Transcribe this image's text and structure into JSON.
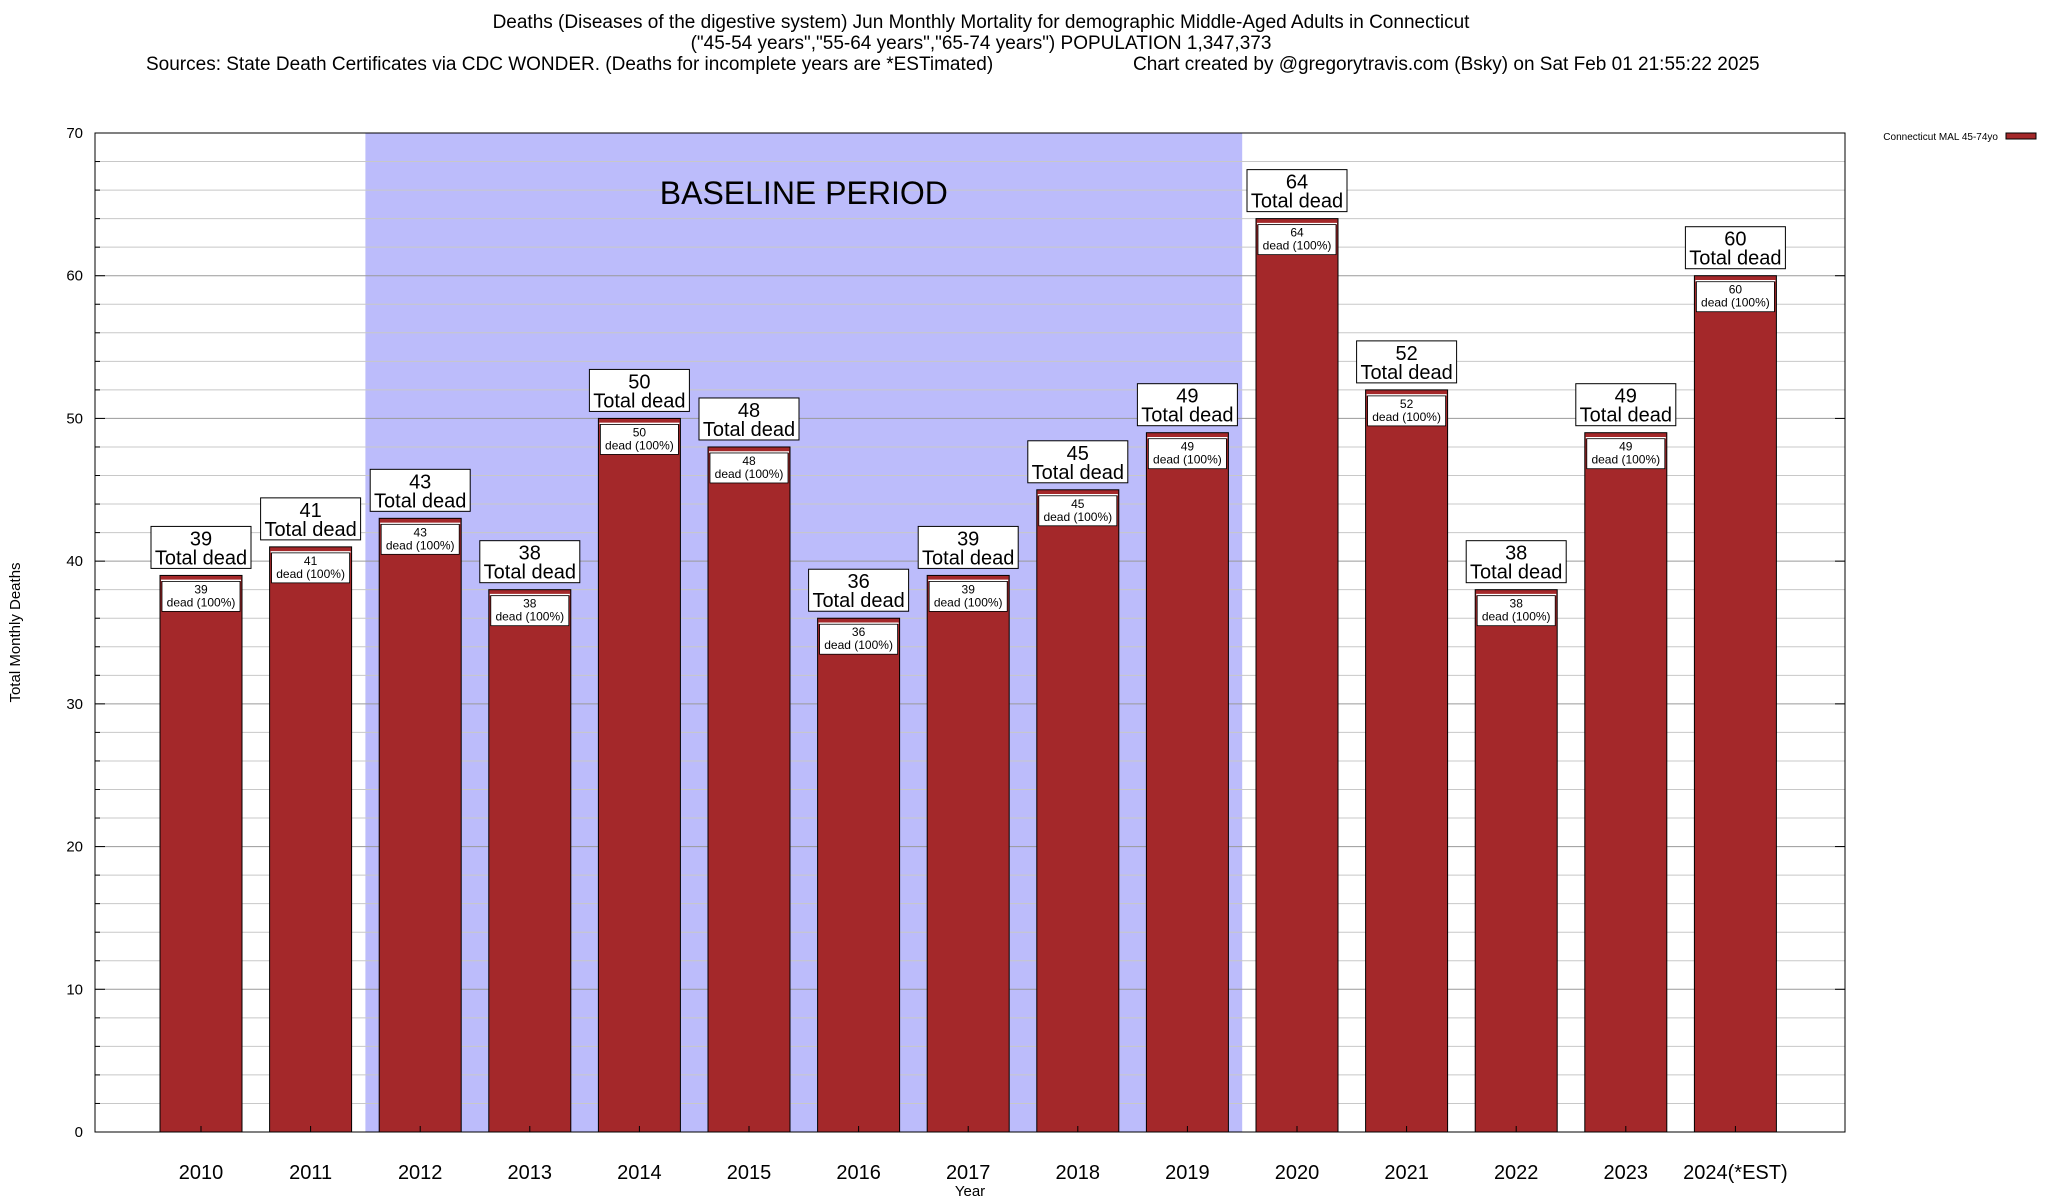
{
  "title": {
    "line1": "Deaths (Diseases of the digestive system) Jun Monthly Mortality for demographic Middle-Aged Adults in Connecticut",
    "line2": "(\"45-54 years\",\"55-64 years\",\"65-74 years\") POPULATION 1,347,373",
    "sources_left": "Sources: State Death Certificates via CDC WONDER. (Deaths for incomplete years are *ESTimated)",
    "sources_right": "Chart created by @gregorytravis.com (Bsky) on Sat Feb 01 21:55:22 2025"
  },
  "colors": {
    "bar": "#a4282a",
    "baseline": "#bcbcfb",
    "grid": "#c8c8c8"
  },
  "chart_data": {
    "type": "bar",
    "categories": [
      "2010",
      "2011",
      "2012",
      "2013",
      "2014",
      "2015",
      "2016",
      "2017",
      "2018",
      "2019",
      "2020",
      "2021",
      "2022",
      "2023",
      "2024(*EST)"
    ],
    "series": [
      {
        "name": "Connecticut MAL 45-74yo",
        "values": [
          39,
          41,
          43,
          38,
          50,
          48,
          36,
          39,
          45,
          49,
          64,
          52,
          38,
          49,
          60
        ]
      }
    ],
    "xlabel": "Year",
    "ylabel": "Total Monthly Deaths",
    "ylim": [
      0,
      70
    ],
    "yticks": [
      0,
      10,
      20,
      30,
      40,
      50,
      60,
      70
    ],
    "grid": true,
    "legend_position": "top-right",
    "top_label_suffix": "Total dead",
    "inner_label_suffix": "dead (100%)",
    "shaded_region": {
      "label": "BASELINE PERIOD",
      "from": "2012",
      "to": "2019"
    }
  }
}
